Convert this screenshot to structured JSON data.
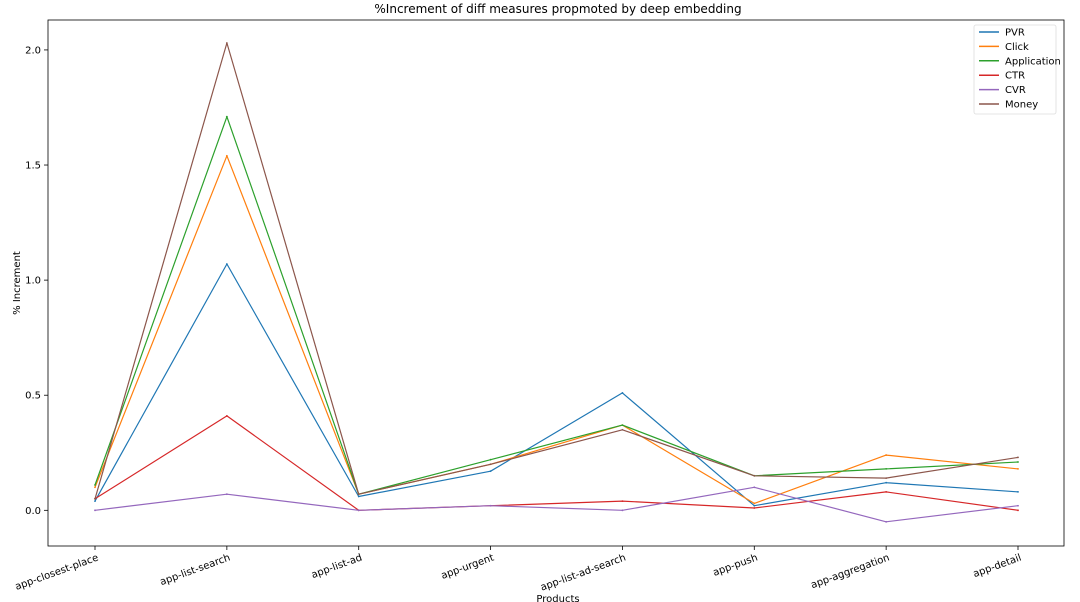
{
  "chart_data": {
    "type": "line",
    "title": "%Increment of diff measures propmoted by deep embedding",
    "xlabel": "Products",
    "ylabel": "% Increment",
    "categories": [
      "app-closest-place",
      "app-list-search",
      "app-list-ad",
      "app-urgent",
      "app-list-ad-search",
      "app-push",
      "app-aggregation",
      "app-detail"
    ],
    "ylim": [
      -0.155,
      2.13
    ],
    "yticks": [
      "0.0",
      "0.5",
      "1.0",
      "1.5",
      "2.0"
    ],
    "ytick_values": [
      0.0,
      0.5,
      1.0,
      1.5,
      2.0
    ],
    "grid": false,
    "legend_position": "top-right",
    "series": [
      {
        "name": "PVR",
        "color": "#1f77b4",
        "values": [
          0.04,
          1.07,
          0.06,
          0.17,
          0.51,
          0.02,
          0.12,
          0.08
        ]
      },
      {
        "name": "Click",
        "color": "#ff7f0e",
        "values": [
          0.1,
          1.54,
          0.07,
          0.2,
          0.37,
          0.03,
          0.24,
          0.18
        ]
      },
      {
        "name": "Application",
        "color": "#2ca02c",
        "values": [
          0.11,
          1.71,
          0.07,
          0.22,
          0.37,
          0.15,
          0.18,
          0.21
        ]
      },
      {
        "name": "CTR",
        "color": "#d62728",
        "values": [
          0.05,
          0.41,
          0.0,
          0.02,
          0.04,
          0.01,
          0.08,
          0.0
        ]
      },
      {
        "name": "CVR",
        "color": "#9467bd",
        "values": [
          0.0,
          0.07,
          0.0,
          0.02,
          0.0,
          0.1,
          -0.05,
          0.02
        ]
      },
      {
        "name": "Money",
        "color": "#8c564b",
        "values": [
          0.05,
          2.03,
          0.07,
          0.2,
          0.35,
          0.15,
          0.14,
          0.23
        ]
      }
    ]
  }
}
